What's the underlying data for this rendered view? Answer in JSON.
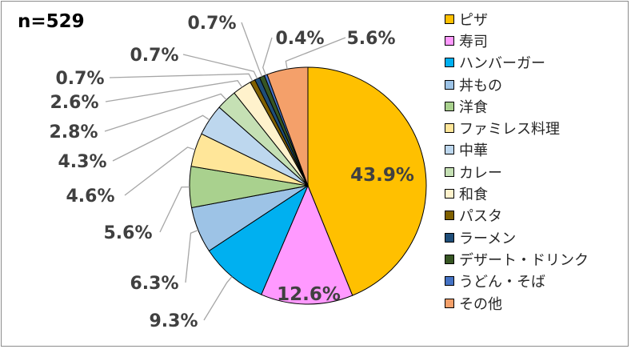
{
  "chart_data": {
    "type": "pie",
    "sample_size": "n=529",
    "slices": [
      {
        "name": "ピザ",
        "value": 43.9,
        "label": "43.9%",
        "color": "#FFC000"
      },
      {
        "name": "寿司",
        "value": 12.6,
        "label": "12.6%",
        "color": "#FF99FF"
      },
      {
        "name": "ハンバーガー",
        "value": 9.3,
        "label": "9.3%",
        "color": "#00B0F0"
      },
      {
        "name": "丼もの",
        "value": 6.3,
        "label": "6.3%",
        "color": "#9DC3E6"
      },
      {
        "name": "洋食",
        "value": 5.6,
        "label": "5.6%",
        "color": "#A9D18E"
      },
      {
        "name": "ファミレス料理",
        "value": 4.6,
        "label": "4.6%",
        "color": "#FFE699"
      },
      {
        "name": "中華",
        "value": 4.3,
        "label": "4.3%",
        "color": "#BDD7EE"
      },
      {
        "name": "カレー",
        "value": 2.8,
        "label": "2.8%",
        "color": "#C5E0B4"
      },
      {
        "name": "和食",
        "value": 2.6,
        "label": "2.6%",
        "color": "#FFF2CC"
      },
      {
        "name": "パスタ",
        "value": 0.7,
        "label": "0.7%",
        "color": "#7F6000"
      },
      {
        "name": "ラーメン",
        "value": 0.7,
        "label": "0.7%",
        "color": "#1F4E79"
      },
      {
        "name": "デザート・ドリンク",
        "value": 0.7,
        "label": "0.7%",
        "color": "#375623"
      },
      {
        "name": "うどん・そば",
        "value": 0.4,
        "label": "0.4%",
        "color": "#4472C4"
      },
      {
        "name": "その他",
        "value": 5.6,
        "label": "5.6%",
        "color": "#F4A06A"
      }
    ],
    "legend_position": "right"
  }
}
